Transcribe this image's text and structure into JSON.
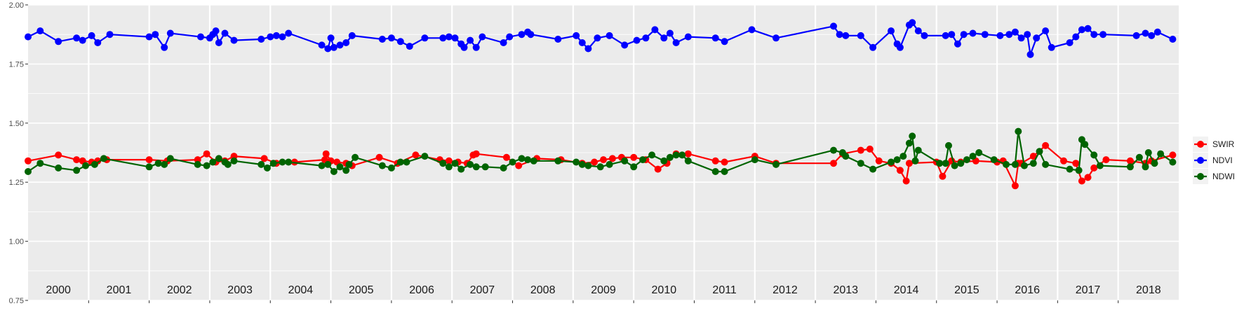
{
  "chart_data": {
    "type": "line",
    "title": "",
    "xlabel": "",
    "ylabel": "",
    "ylim": [
      0.75,
      2.0
    ],
    "xlim": [
      1999.5,
      2018.5
    ],
    "y_ticks": [
      "0.75",
      "1.00",
      "1.25",
      "1.50",
      "1.75",
      "2.00"
    ],
    "year_labels": [
      "2000",
      "2001",
      "2002",
      "2003",
      "2004",
      "2005",
      "2006",
      "2007",
      "2008",
      "2009",
      "2010",
      "2011",
      "2012",
      "2013",
      "2014",
      "2015",
      "2016",
      "2017",
      "2018"
    ],
    "panel_background": "#EBEBEB",
    "grid": true,
    "legend_position": "right",
    "series": [
      {
        "name": "SWIR",
        "color": "#FF0000",
        "points": [
          [
            1999.5,
            1.34
          ],
          [
            2000.0,
            1.365
          ],
          [
            2000.3,
            1.345
          ],
          [
            2000.4,
            1.34
          ],
          [
            2000.55,
            1.335
          ],
          [
            2000.65,
            1.34
          ],
          [
            2000.8,
            1.345
          ],
          [
            2001.5,
            1.345
          ],
          [
            2001.8,
            1.34
          ],
          [
            2002.3,
            1.345
          ],
          [
            2002.45,
            1.37
          ],
          [
            2002.6,
            1.335
          ],
          [
            2002.75,
            1.34
          ],
          [
            2002.9,
            1.36
          ],
          [
            2003.4,
            1.35
          ],
          [
            2003.6,
            1.33
          ],
          [
            2003.9,
            1.335
          ],
          [
            2004.4,
            1.345
          ],
          [
            2004.42,
            1.37
          ],
          [
            2004.5,
            1.34
          ],
          [
            2004.6,
            1.335
          ],
          [
            2004.75,
            1.33
          ],
          [
            2004.85,
            1.32
          ],
          [
            2005.3,
            1.355
          ],
          [
            2005.6,
            1.33
          ],
          [
            2005.9,
            1.365
          ],
          [
            2006.3,
            1.345
          ],
          [
            2006.45,
            1.34
          ],
          [
            2006.6,
            1.335
          ],
          [
            2006.75,
            1.33
          ],
          [
            2006.85,
            1.365
          ],
          [
            2006.9,
            1.37
          ],
          [
            2007.4,
            1.355
          ],
          [
            2007.6,
            1.32
          ],
          [
            2007.9,
            1.35
          ],
          [
            2008.3,
            1.345
          ],
          [
            2008.65,
            1.33
          ],
          [
            2008.85,
            1.335
          ],
          [
            2009.0,
            1.345
          ],
          [
            2009.15,
            1.35
          ],
          [
            2009.3,
            1.355
          ],
          [
            2009.5,
            1.355
          ],
          [
            2009.7,
            1.345
          ],
          [
            2009.9,
            1.305
          ],
          [
            2010.05,
            1.33
          ],
          [
            2010.2,
            1.37
          ],
          [
            2010.4,
            1.37
          ],
          [
            2010.85,
            1.34
          ],
          [
            2011.0,
            1.335
          ],
          [
            2011.5,
            1.36
          ],
          [
            2011.85,
            1.33
          ],
          [
            2012.8,
            1.33
          ],
          [
            2012.95,
            1.37
          ],
          [
            2013.25,
            1.385
          ],
          [
            2013.4,
            1.39
          ],
          [
            2013.55,
            1.34
          ],
          [
            2013.75,
            1.33
          ],
          [
            2013.9,
            1.3
          ],
          [
            2014.0,
            1.255
          ],
          [
            2014.05,
            1.33
          ],
          [
            2014.5,
            1.335
          ],
          [
            2014.6,
            1.275
          ],
          [
            2014.75,
            1.34
          ],
          [
            2014.9,
            1.335
          ],
          [
            2015.15,
            1.34
          ],
          [
            2015.5,
            1.335
          ],
          [
            2015.6,
            1.34
          ],
          [
            2015.8,
            1.235
          ],
          [
            2015.85,
            1.33
          ],
          [
            2015.9,
            1.33
          ],
          [
            2016.1,
            1.36
          ],
          [
            2016.3,
            1.405
          ],
          [
            2016.6,
            1.34
          ],
          [
            2016.8,
            1.33
          ],
          [
            2016.9,
            1.255
          ],
          [
            2017.0,
            1.27
          ],
          [
            2017.1,
            1.31
          ],
          [
            2017.3,
            1.345
          ],
          [
            2017.7,
            1.34
          ],
          [
            2017.95,
            1.33
          ],
          [
            2018.05,
            1.34
          ],
          [
            2018.4,
            1.365
          ]
        ]
      },
      {
        "name": "NDVI",
        "color": "#0000FF",
        "points": [
          [
            1999.5,
            1.865
          ],
          [
            1999.7,
            1.89
          ],
          [
            2000.0,
            1.845
          ],
          [
            2000.3,
            1.86
          ],
          [
            2000.4,
            1.85
          ],
          [
            2000.55,
            1.87
          ],
          [
            2000.65,
            1.84
          ],
          [
            2000.85,
            1.875
          ],
          [
            2001.5,
            1.865
          ],
          [
            2001.6,
            1.875
          ],
          [
            2001.75,
            1.82
          ],
          [
            2001.85,
            1.88
          ],
          [
            2002.35,
            1.865
          ],
          [
            2002.5,
            1.86
          ],
          [
            2002.55,
            1.875
          ],
          [
            2002.6,
            1.89
          ],
          [
            2002.65,
            1.84
          ],
          [
            2002.75,
            1.88
          ],
          [
            2002.9,
            1.85
          ],
          [
            2003.35,
            1.855
          ],
          [
            2003.5,
            1.865
          ],
          [
            2003.6,
            1.87
          ],
          [
            2003.7,
            1.865
          ],
          [
            2003.8,
            1.88
          ],
          [
            2004.35,
            1.83
          ],
          [
            2004.45,
            1.815
          ],
          [
            2004.5,
            1.86
          ],
          [
            2004.55,
            1.82
          ],
          [
            2004.65,
            1.83
          ],
          [
            2004.75,
            1.84
          ],
          [
            2004.85,
            1.87
          ],
          [
            2005.35,
            1.855
          ],
          [
            2005.5,
            1.86
          ],
          [
            2005.65,
            1.845
          ],
          [
            2005.8,
            1.825
          ],
          [
            2006.05,
            1.86
          ],
          [
            2006.35,
            1.86
          ],
          [
            2006.45,
            1.865
          ],
          [
            2006.55,
            1.86
          ],
          [
            2006.65,
            1.835
          ],
          [
            2006.7,
            1.82
          ],
          [
            2006.8,
            1.85
          ],
          [
            2006.9,
            1.82
          ],
          [
            2007.0,
            1.865
          ],
          [
            2007.35,
            1.84
          ],
          [
            2007.45,
            1.865
          ],
          [
            2007.65,
            1.875
          ],
          [
            2007.75,
            1.885
          ],
          [
            2007.8,
            1.875
          ],
          [
            2008.25,
            1.855
          ],
          [
            2008.55,
            1.87
          ],
          [
            2008.65,
            1.84
          ],
          [
            2008.75,
            1.815
          ],
          [
            2008.9,
            1.86
          ],
          [
            2009.1,
            1.87
          ],
          [
            2009.35,
            1.83
          ],
          [
            2009.55,
            1.85
          ],
          [
            2009.7,
            1.86
          ],
          [
            2009.85,
            1.895
          ],
          [
            2010.0,
            1.86
          ],
          [
            2010.1,
            1.88
          ],
          [
            2010.2,
            1.84
          ],
          [
            2010.4,
            1.865
          ],
          [
            2010.85,
            1.86
          ],
          [
            2011.0,
            1.845
          ],
          [
            2011.45,
            1.895
          ],
          [
            2011.85,
            1.86
          ],
          [
            2012.8,
            1.91
          ],
          [
            2012.9,
            1.875
          ],
          [
            2013.0,
            1.87
          ],
          [
            2013.25,
            1.87
          ],
          [
            2013.45,
            1.82
          ],
          [
            2013.75,
            1.89
          ],
          [
            2013.85,
            1.835
          ],
          [
            2013.9,
            1.82
          ],
          [
            2014.05,
            1.915
          ],
          [
            2014.1,
            1.925
          ],
          [
            2014.2,
            1.89
          ],
          [
            2014.3,
            1.87
          ],
          [
            2014.65,
            1.87
          ],
          [
            2014.75,
            1.875
          ],
          [
            2014.85,
            1.835
          ],
          [
            2014.95,
            1.875
          ],
          [
            2015.1,
            1.88
          ],
          [
            2015.3,
            1.875
          ],
          [
            2015.55,
            1.87
          ],
          [
            2015.7,
            1.875
          ],
          [
            2015.8,
            1.885
          ],
          [
            2015.9,
            1.86
          ],
          [
            2016.0,
            1.875
          ],
          [
            2016.05,
            1.79
          ],
          [
            2016.15,
            1.86
          ],
          [
            2016.3,
            1.89
          ],
          [
            2016.4,
            1.82
          ],
          [
            2016.7,
            1.84
          ],
          [
            2016.8,
            1.865
          ],
          [
            2016.9,
            1.895
          ],
          [
            2017.0,
            1.9
          ],
          [
            2017.1,
            1.875
          ],
          [
            2017.25,
            1.875
          ],
          [
            2017.8,
            1.87
          ],
          [
            2017.95,
            1.88
          ],
          [
            2018.05,
            1.87
          ],
          [
            2018.15,
            1.885
          ],
          [
            2018.4,
            1.855
          ]
        ]
      },
      {
        "name": "NDWI",
        "color": "#006400",
        "points": [
          [
            1999.5,
            1.295
          ],
          [
            1999.7,
            1.33
          ],
          [
            2000.0,
            1.31
          ],
          [
            2000.3,
            1.3
          ],
          [
            2000.45,
            1.32
          ],
          [
            2000.6,
            1.325
          ],
          [
            2000.75,
            1.35
          ],
          [
            2001.5,
            1.315
          ],
          [
            2001.65,
            1.33
          ],
          [
            2001.75,
            1.325
          ],
          [
            2001.85,
            1.35
          ],
          [
            2002.3,
            1.325
          ],
          [
            2002.45,
            1.32
          ],
          [
            2002.55,
            1.335
          ],
          [
            2002.65,
            1.35
          ],
          [
            2002.75,
            1.335
          ],
          [
            2002.8,
            1.325
          ],
          [
            2002.9,
            1.34
          ],
          [
            2003.35,
            1.325
          ],
          [
            2003.45,
            1.31
          ],
          [
            2003.55,
            1.33
          ],
          [
            2003.7,
            1.335
          ],
          [
            2003.8,
            1.335
          ],
          [
            2004.35,
            1.32
          ],
          [
            2004.45,
            1.325
          ],
          [
            2004.55,
            1.295
          ],
          [
            2004.65,
            1.315
          ],
          [
            2004.75,
            1.3
          ],
          [
            2004.8,
            1.325
          ],
          [
            2004.9,
            1.355
          ],
          [
            2005.35,
            1.32
          ],
          [
            2005.5,
            1.31
          ],
          [
            2005.65,
            1.335
          ],
          [
            2005.75,
            1.335
          ],
          [
            2006.05,
            1.36
          ],
          [
            2006.35,
            1.33
          ],
          [
            2006.45,
            1.315
          ],
          [
            2006.55,
            1.33
          ],
          [
            2006.65,
            1.305
          ],
          [
            2006.8,
            1.325
          ],
          [
            2006.9,
            1.315
          ],
          [
            2007.05,
            1.315
          ],
          [
            2007.35,
            1.31
          ],
          [
            2007.5,
            1.335
          ],
          [
            2007.65,
            1.35
          ],
          [
            2007.75,
            1.345
          ],
          [
            2007.85,
            1.34
          ],
          [
            2008.25,
            1.34
          ],
          [
            2008.55,
            1.335
          ],
          [
            2008.65,
            1.325
          ],
          [
            2008.75,
            1.32
          ],
          [
            2008.95,
            1.315
          ],
          [
            2009.1,
            1.325
          ],
          [
            2009.35,
            1.34
          ],
          [
            2009.5,
            1.315
          ],
          [
            2009.65,
            1.345
          ],
          [
            2009.8,
            1.365
          ],
          [
            2010.0,
            1.34
          ],
          [
            2010.1,
            1.355
          ],
          [
            2010.2,
            1.365
          ],
          [
            2010.3,
            1.365
          ],
          [
            2010.4,
            1.34
          ],
          [
            2010.85,
            1.295
          ],
          [
            2011.0,
            1.295
          ],
          [
            2011.5,
            1.345
          ],
          [
            2011.85,
            1.325
          ],
          [
            2012.8,
            1.385
          ],
          [
            2012.95,
            1.375
          ],
          [
            2013.0,
            1.36
          ],
          [
            2013.25,
            1.33
          ],
          [
            2013.45,
            1.305
          ],
          [
            2013.75,
            1.335
          ],
          [
            2013.85,
            1.345
          ],
          [
            2013.95,
            1.36
          ],
          [
            2014.05,
            1.415
          ],
          [
            2014.1,
            1.445
          ],
          [
            2014.15,
            1.34
          ],
          [
            2014.2,
            1.385
          ],
          [
            2014.55,
            1.33
          ],
          [
            2014.65,
            1.33
          ],
          [
            2014.7,
            1.405
          ],
          [
            2014.8,
            1.32
          ],
          [
            2014.9,
            1.33
          ],
          [
            2015.0,
            1.345
          ],
          [
            2015.1,
            1.36
          ],
          [
            2015.2,
            1.375
          ],
          [
            2015.45,
            1.345
          ],
          [
            2015.65,
            1.325
          ],
          [
            2015.8,
            1.325
          ],
          [
            2015.85,
            1.465
          ],
          [
            2015.95,
            1.32
          ],
          [
            2016.1,
            1.33
          ],
          [
            2016.2,
            1.38
          ],
          [
            2016.3,
            1.325
          ],
          [
            2016.7,
            1.305
          ],
          [
            2016.85,
            1.3
          ],
          [
            2016.9,
            1.43
          ],
          [
            2016.95,
            1.41
          ],
          [
            2017.1,
            1.365
          ],
          [
            2017.2,
            1.32
          ],
          [
            2017.7,
            1.315
          ],
          [
            2017.85,
            1.355
          ],
          [
            2017.95,
            1.315
          ],
          [
            2018.0,
            1.375
          ],
          [
            2018.1,
            1.33
          ],
          [
            2018.2,
            1.37
          ],
          [
            2018.4,
            1.335
          ]
        ]
      }
    ]
  }
}
